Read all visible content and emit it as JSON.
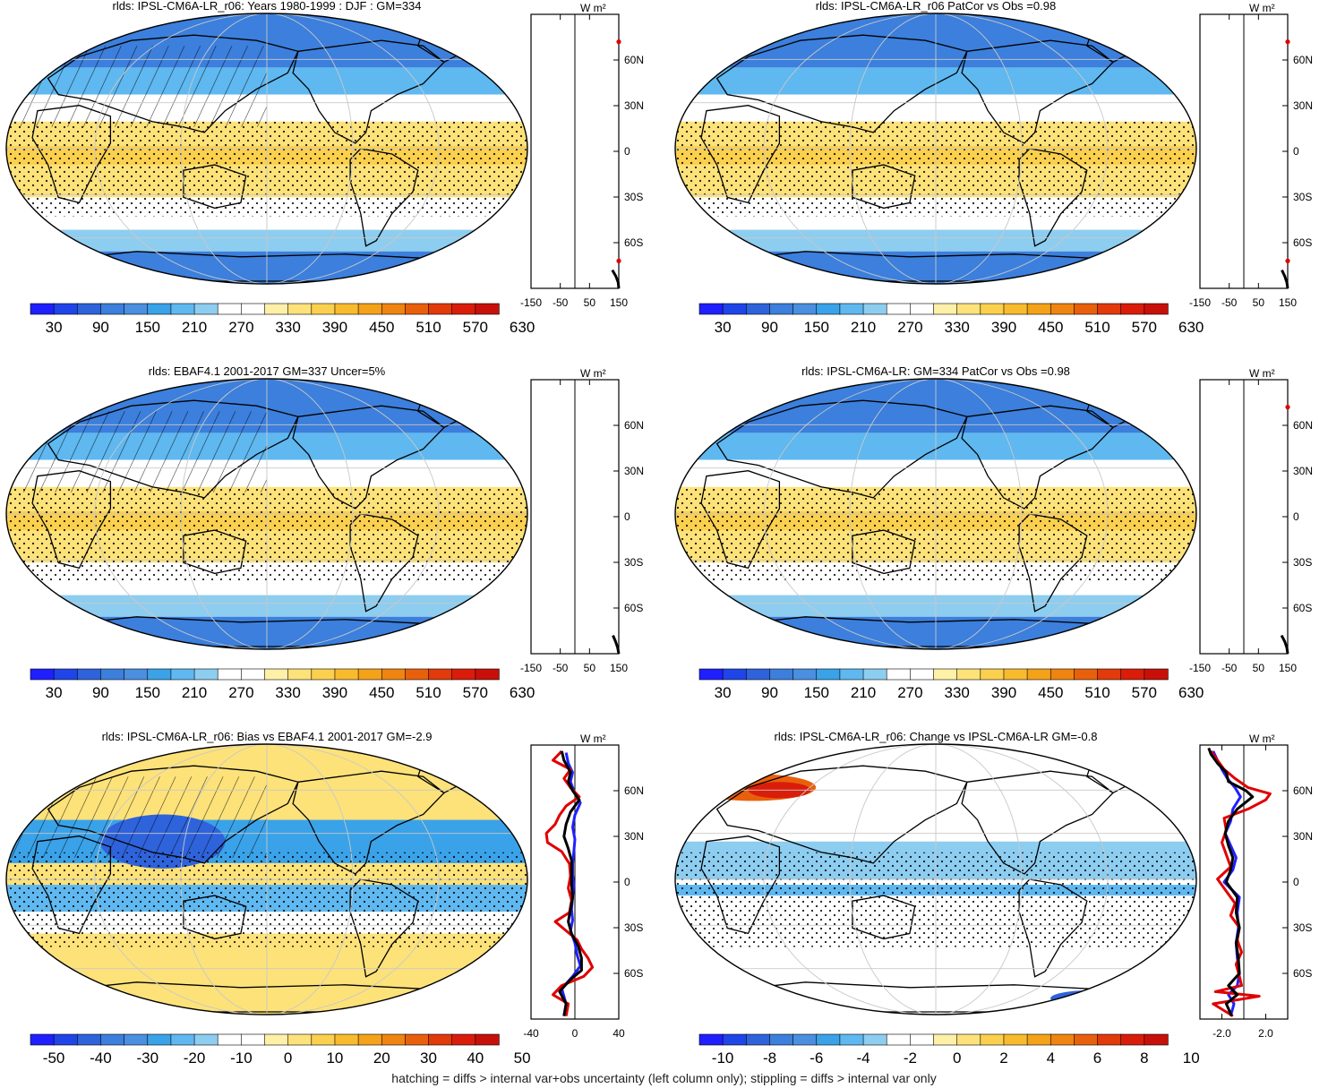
{
  "footer": "hatching = diffs > internal var+obs uncertainty (left column only); stippling = diffs > internal var only",
  "colors": {
    "mean_palette": [
      "#1f1fff",
      "#1f45e8",
      "#2e63db",
      "#3c7fdc",
      "#4a8fe0",
      "#3aa2e8",
      "#5fb8f0",
      "#8dcdf0",
      "#ffffff",
      "#ffffff",
      "#fff0a8",
      "#fde27a",
      "#fbd04e",
      "#f8bb2e",
      "#f4a21a",
      "#ef8410",
      "#e9600c",
      "#e23a0a",
      "#d91d0a",
      "#c8100a"
    ],
    "diff_palette": [
      "#1f1fff",
      "#1f45e8",
      "#2e63db",
      "#3c7fdc",
      "#4a8fe0",
      "#3aa2e8",
      "#5fb8f0",
      "#8dcdf0",
      "#ffffff",
      "#ffffff",
      "#fff0a8",
      "#fde27a",
      "#fbd04e",
      "#f8bb2e",
      "#f4a21a",
      "#ef8410",
      "#e9600c",
      "#e23a0a",
      "#d91d0a",
      "#c8100a"
    ]
  },
  "chart_data": [
    {
      "id": "p1",
      "type": "heatmap",
      "title": "rlds: IPSL-CM6A-LR_r06: Years 1980-1999 : DJF : GM=334",
      "style": "mean",
      "hatch": true,
      "stipple": true,
      "colorbar": [
        "30",
        "90",
        "150",
        "210",
        "270",
        "330",
        "390",
        "450",
        "510",
        "570",
        "630"
      ],
      "zonal": {
        "unit": "W m²",
        "xticks": [
          "-150",
          "-50",
          "50",
          "150"
        ],
        "xlim": [
          -150,
          150
        ],
        "yticks": [
          "60N",
          "30N",
          "0",
          "30S",
          "60S"
        ],
        "series": [
          {
            "color": "#000000",
            "lat": [
              -90,
              -86,
              -82,
              -78
            ],
            "values": [
              150,
              148,
              140,
              128
            ]
          },
          {
            "color": "#e00000",
            "lat": [
              -72,
              72
            ],
            "values": [
              150,
              150
            ]
          }
        ]
      }
    },
    {
      "id": "p2",
      "type": "heatmap",
      "title": "rlds: IPSL-CM6A-LR_r06 PatCor vs Obs =0.98",
      "style": "mean",
      "hatch": false,
      "stipple": true,
      "colorbar": [
        "30",
        "90",
        "150",
        "210",
        "270",
        "330",
        "390",
        "450",
        "510",
        "570",
        "630"
      ],
      "zonal": {
        "unit": "W m²",
        "xticks": [
          "-150",
          "-50",
          "50",
          "150"
        ],
        "xlim": [
          -150,
          150
        ],
        "yticks": [
          "60N",
          "30N",
          "0",
          "30S",
          "60S"
        ],
        "series": [
          {
            "color": "#000000",
            "lat": [
              -90,
              -86,
              -82,
              -78
            ],
            "values": [
              150,
              147,
              140,
              130
            ]
          },
          {
            "color": "#e00000",
            "lat": [
              -72,
              72
            ],
            "values": [
              150,
              150
            ]
          }
        ]
      }
    },
    {
      "id": "p3",
      "type": "heatmap",
      "title": "rlds: EBAF4.1 2001-2017 GM=337 Uncer=5%",
      "style": "mean",
      "hatch": true,
      "stipple": true,
      "colorbar": [
        "30",
        "90",
        "150",
        "210",
        "270",
        "330",
        "390",
        "450",
        "510",
        "570",
        "630"
      ],
      "zonal": {
        "unit": "W m²",
        "xticks": [
          "-150",
          "-50",
          "50",
          "150"
        ],
        "xlim": [
          -150,
          150
        ],
        "yticks": [
          "60N",
          "30N",
          "0",
          "30S",
          "60S"
        ],
        "series": [
          {
            "color": "#000000",
            "lat": [
              -90,
              -86,
              -82,
              -78
            ],
            "values": [
              150,
              146,
              139,
              130
            ]
          }
        ]
      }
    },
    {
      "id": "p4",
      "type": "heatmap",
      "title": "rlds: IPSL-CM6A-LR: GM=334 PatCor vs Obs =0.98",
      "style": "mean",
      "hatch": false,
      "stipple": true,
      "colorbar": [
        "30",
        "90",
        "150",
        "210",
        "270",
        "330",
        "390",
        "450",
        "510",
        "570",
        "630"
      ],
      "zonal": {
        "unit": "W m²",
        "xticks": [
          "-150",
          "-50",
          "50",
          "150"
        ],
        "xlim": [
          -150,
          150
        ],
        "yticks": [
          "60N",
          "30N",
          "0",
          "30S",
          "60S"
        ],
        "series": [
          {
            "color": "#000000",
            "lat": [
              -90,
              -86,
              -82,
              -78
            ],
            "values": [
              150,
              147,
              140,
              129
            ]
          },
          {
            "color": "#e00000",
            "lat": [
              72
            ],
            "values": [
              150
            ]
          }
        ]
      }
    },
    {
      "id": "p5",
      "type": "heatmap",
      "title": "rlds: IPSL-CM6A-LR_r06: Bias vs EBAF4.1 2001-2017 GM=-2.9",
      "style": "bias",
      "hatch": true,
      "stipple": true,
      "colorbar": [
        "-50",
        "-40",
        "-30",
        "-20",
        "-10",
        "0",
        "10",
        "20",
        "30",
        "40",
        "50"
      ],
      "zonal": {
        "unit": "W m²",
        "xticks": [
          "-40",
          "0",
          "40"
        ],
        "xlim": [
          -40,
          40
        ],
        "yticks": [
          "60N",
          "30N",
          "0",
          "30S",
          "60S"
        ],
        "series": [
          {
            "color": "#2020ff",
            "lat": [
              -88,
              -80,
              -70,
              -62,
              -55,
              -48,
              -40,
              -32,
              -25,
              -18,
              -10,
              -2,
              5,
              12,
              20,
              28,
              36,
              44,
              52,
              60,
              66,
              72,
              78,
              85
            ],
            "values": [
              -10,
              -8,
              -12,
              -2,
              5,
              2,
              0,
              -4,
              -2,
              -3,
              -2,
              -1,
              -2,
              -2,
              -1,
              0,
              -2,
              0,
              5,
              -1,
              -4,
              -2,
              -6,
              -8
            ]
          },
          {
            "color": "#e00000",
            "lat": [
              -88,
              -80,
              -74,
              -68,
              -62,
              -56,
              -50,
              -44,
              -38,
              -32,
              -26,
              -20,
              -12,
              -4,
              4,
              12,
              20,
              26,
              32,
              38,
              44,
              50,
              56,
              62,
              68,
              74,
              80,
              86
            ],
            "values": [
              -8,
              -6,
              -20,
              -12,
              8,
              16,
              12,
              6,
              2,
              -8,
              -18,
              -5,
              -3,
              -6,
              -4,
              -5,
              -12,
              -25,
              -26,
              -18,
              -14,
              -8,
              4,
              -4,
              -10,
              -4,
              -20,
              -12
            ]
          },
          {
            "color": "#000000",
            "lat": [
              -88,
              -80,
              -72,
              -64,
              -58,
              -50,
              -42,
              -34,
              -26,
              -18,
              -10,
              -2,
              6,
              14,
              22,
              30,
              38,
              46,
              54,
              60,
              66,
              72,
              80,
              86
            ],
            "values": [
              -10,
              -8,
              -14,
              -4,
              6,
              6,
              3,
              -3,
              -6,
              -4,
              -2,
              -3,
              -3,
              -3,
              -6,
              -10,
              -8,
              -4,
              4,
              -2,
              -6,
              -4,
              -10,
              -12
            ]
          }
        ]
      }
    },
    {
      "id": "p6",
      "type": "heatmap",
      "title": "rlds: IPSL-CM6A-LR_r06: Change vs IPSL-CM6A-LR GM=-0.8",
      "style": "change",
      "hatch": false,
      "stipple": true,
      "colorbar": [
        "-10",
        "-8",
        "-6",
        "-4",
        "-2",
        "0",
        "2",
        "4",
        "6",
        "8",
        "10"
      ],
      "zonal": {
        "unit": "W m²",
        "xticks": [
          "-2.0",
          "2.0"
        ],
        "xlim": [
          -4,
          4
        ],
        "yticks": [
          "60N",
          "30N",
          "0",
          "30S",
          "60S"
        ],
        "series": [
          {
            "color": "#2020ff",
            "lat": [
              -88,
              -80,
              -74,
              -68,
              -60,
              -50,
              -40,
              -30,
              -20,
              -10,
              0,
              8,
              16,
              24,
              32,
              40,
              48,
              56,
              62,
              68,
              74,
              80,
              86
            ],
            "values": [
              -1.2,
              -0.9,
              -1.4,
              -0.6,
              -0.4,
              -0.6,
              -0.7,
              -0.5,
              -0.6,
              -0.4,
              -1.8,
              -1.0,
              -0.7,
              -1.2,
              -1.7,
              -1.2,
              -1.0,
              -0.3,
              -0.8,
              -1.5,
              -2.0,
              -2.4,
              -2.8
            ]
          },
          {
            "color": "#e00000",
            "lat": [
              -88,
              -80,
              -75,
              -72,
              -68,
              -62,
              -54,
              -46,
              -38,
              -30,
              -22,
              -14,
              -6,
              2,
              10,
              18,
              26,
              34,
              42,
              48,
              54,
              58,
              62,
              68,
              74,
              80,
              86
            ],
            "values": [
              -1.0,
              -2.8,
              1.4,
              -2.6,
              -0.2,
              -0.4,
              -0.7,
              -0.2,
              -0.6,
              -0.4,
              -1.2,
              -0.8,
              -1.6,
              -2.4,
              -1.2,
              -1.6,
              -2.0,
              -1.6,
              -1.8,
              0.4,
              2.0,
              2.4,
              0.4,
              -0.8,
              -1.8,
              -2.4,
              -3.0
            ]
          },
          {
            "color": "#000000",
            "lat": [
              -88,
              -80,
              -74,
              -68,
              -60,
              -50,
              -40,
              -30,
              -20,
              -10,
              0,
              8,
              16,
              24,
              32,
              40,
              48,
              56,
              60,
              66,
              72,
              78,
              84,
              88
            ],
            "values": [
              -1.1,
              -1.6,
              -0.6,
              -1.4,
              -0.4,
              -0.5,
              -0.7,
              -0.4,
              -0.7,
              -0.6,
              -1.6,
              -1.2,
              -1.0,
              -1.4,
              -1.7,
              -1.4,
              -0.6,
              0.8,
              0.2,
              -1.4,
              -1.6,
              -2.4,
              -3.0,
              -3.2
            ]
          }
        ]
      }
    }
  ]
}
